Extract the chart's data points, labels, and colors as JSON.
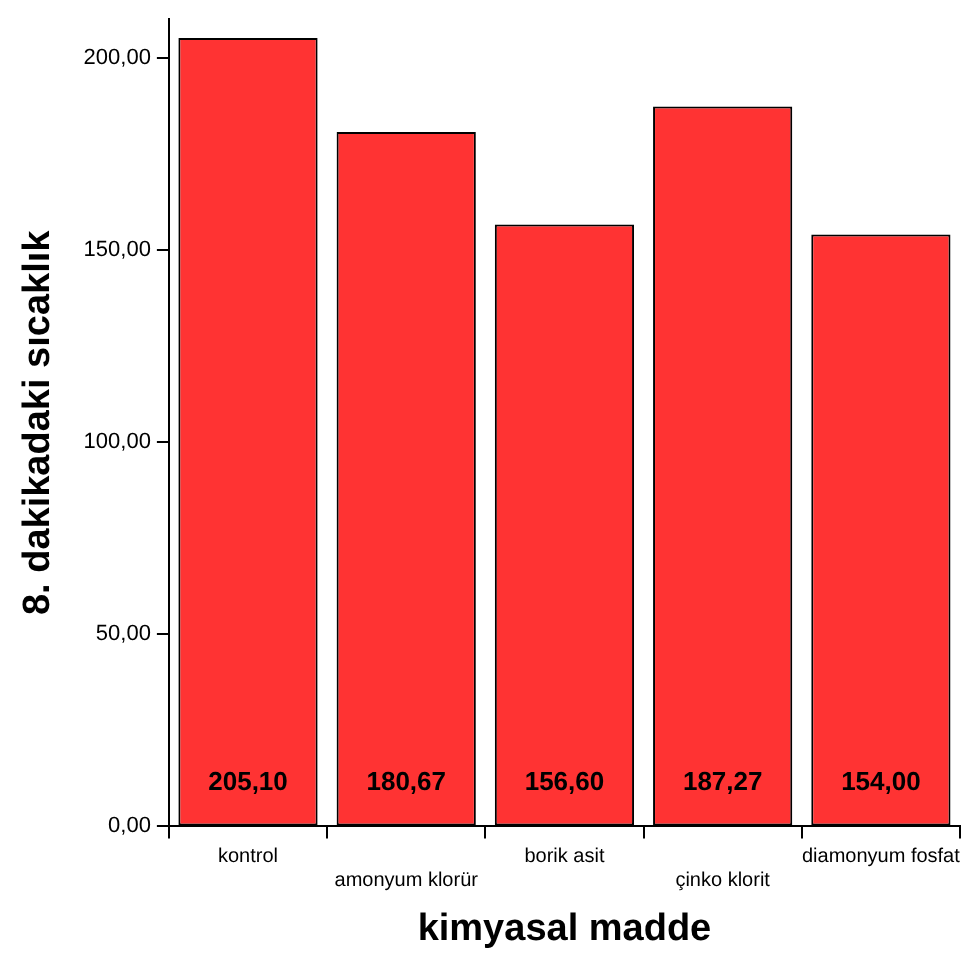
{
  "chart_data": {
    "type": "bar",
    "xlabel": "kimyasal madde",
    "ylabel": "8. dakikadaki sıcaklık",
    "categories": [
      "kontrol",
      "amonyum klorür",
      "borik asit",
      "çinko klorit",
      "diamonyum fosfat"
    ],
    "values": [
      205.1,
      180.67,
      156.6,
      187.27,
      154.0
    ],
    "value_labels": [
      "205,10",
      "180,67",
      "156,60",
      "187,27",
      "154,00"
    ],
    "color": "#ff3333",
    "ylim": [
      0,
      210
    ],
    "yticks": [
      {
        "value": 0,
        "label": "0,00"
      },
      {
        "value": 50,
        "label": "50,00"
      },
      {
        "value": 100,
        "label": "100,00"
      },
      {
        "value": 150,
        "label": "150,00"
      },
      {
        "value": 200,
        "label": "200,00"
      }
    ],
    "grid": false,
    "legend": false
  }
}
